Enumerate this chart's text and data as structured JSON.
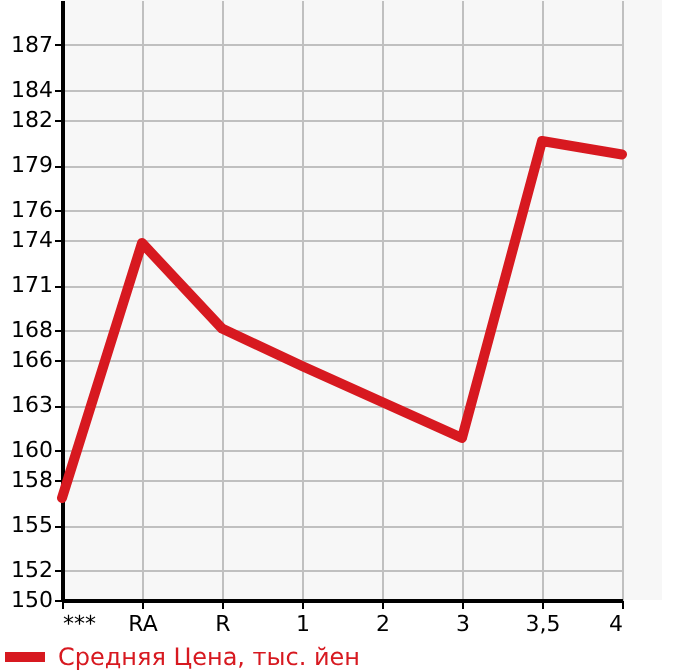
{
  "chart_data": {
    "type": "line",
    "categories": [
      "***",
      "RA",
      "R",
      "1",
      "2",
      "3",
      "3,5",
      "4"
    ],
    "series": [
      {
        "name": "Средняя Цена, тыс. йен",
        "color": "#d71920",
        "values": [
          156.8,
          173.8,
          168.1,
          165.6,
          163.2,
          160.8,
          180.6,
          179.7
        ]
      }
    ],
    "ylim": [
      150,
      190
    ],
    "yticks": [
      150,
      152,
      155,
      158,
      160,
      163,
      166,
      168,
      171,
      174,
      176,
      179,
      182,
      184,
      187
    ],
    "grid": true,
    "legend": "bottom",
    "marker": "none",
    "line_style": "solid"
  }
}
